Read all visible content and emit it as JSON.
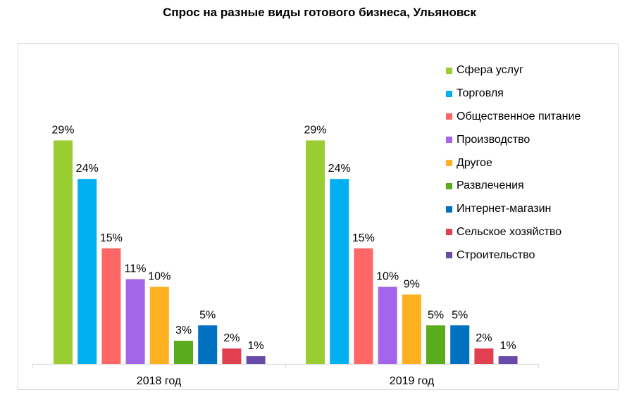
{
  "chart_data": {
    "type": "bar",
    "title": "Спрос на разные виды готового  бизнеса, Ульяновск",
    "categories": [
      "2018 год",
      "2019 год"
    ],
    "value_suffix": "%",
    "ylim": [
      0,
      30
    ],
    "grid": false,
    "legend_position": "right",
    "series": [
      {
        "name": "Сфера услуг",
        "color": "#9acd32",
        "values": [
          29,
          29
        ]
      },
      {
        "name": "Торговля",
        "color": "#00b0f0",
        "values": [
          24,
          24
        ]
      },
      {
        "name": "Общественное питание",
        "color": "#ff6666",
        "values": [
          15,
          15
        ]
      },
      {
        "name": "Производство",
        "color": "#a366e8",
        "values": [
          11,
          10
        ]
      },
      {
        "name": "Другое",
        "color": "#ffb020",
        "values": [
          10,
          9
        ]
      },
      {
        "name": "Развлечения",
        "color": "#5aac1f",
        "values": [
          3,
          5
        ]
      },
      {
        "name": "Интернет-магазин",
        "color": "#0070c0",
        "values": [
          5,
          5
        ]
      },
      {
        "name": "Сельское хозяйство",
        "color": "#e04050",
        "values": [
          2,
          2
        ]
      },
      {
        "name": "Строительство",
        "color": "#6a4aa8",
        "values": [
          1,
          1
        ]
      }
    ]
  }
}
